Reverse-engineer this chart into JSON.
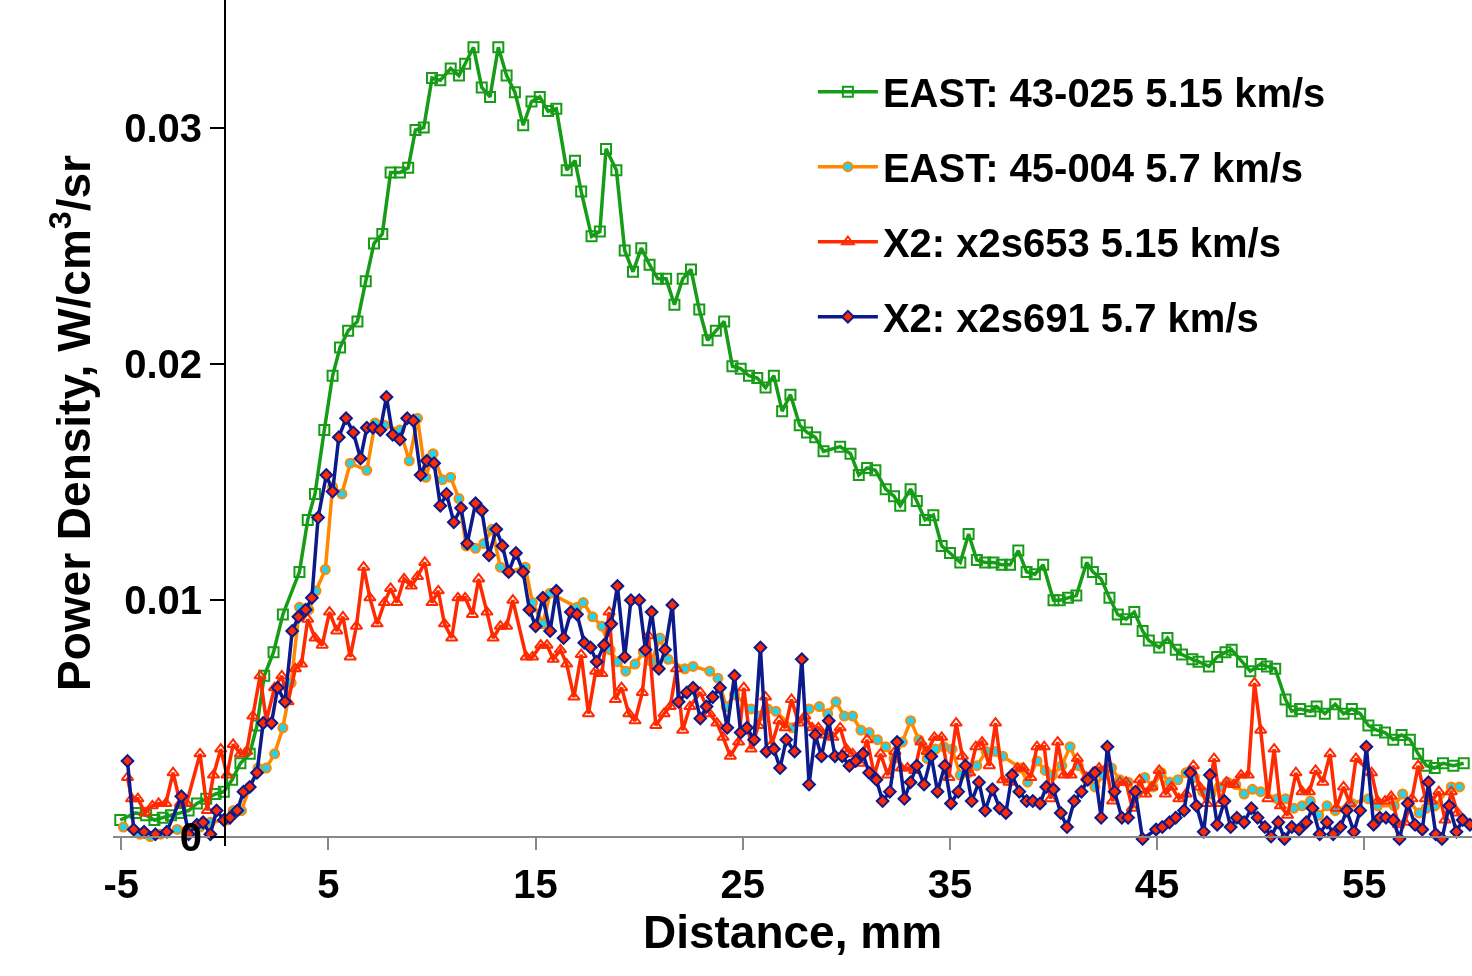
{
  "chart_data": {
    "type": "line",
    "xlabel": "Distance, mm",
    "ylabel": "Power Density, W/cm$^{3}$/sr",
    "xlim": [
      -5.4,
      60.2
    ],
    "ylim": [
      -0.0004,
      0.0354
    ],
    "xticks": [
      -5,
      5,
      15,
      25,
      35,
      45,
      55
    ],
    "yticks": [
      0,
      0.01,
      0.02,
      0.03
    ],
    "grid": false,
    "legend": "top right",
    "line_style": "solid",
    "series": [
      {
        "name": "EAST: 43-025 5.15 km/s",
        "color": "#169c16",
        "marker": "square",
        "x": [
          -5.05,
          -4.3,
          -3.8,
          -3.4,
          -3.0,
          -2.6,
          -2.15,
          -1.75,
          -1.35,
          -0.9,
          -0.45,
          -0.05,
          0.35,
          0.75,
          1.2,
          1.55,
          1.9,
          2.35,
          2.8,
          3.6,
          4.0,
          4.35,
          4.8,
          5.2,
          5.56,
          5.95,
          6.4,
          6.8,
          7.2,
          7.6,
          8.0,
          8.45,
          8.85,
          9.2,
          9.6,
          10.0,
          10.4,
          10.9,
          11.3,
          11.6,
          12.0,
          12.4,
          12.8,
          13.2,
          13.6,
          14.0,
          14.4,
          14.8,
          15.2,
          15.6,
          16.0,
          16.5,
          16.9,
          17.2,
          17.7,
          18.1,
          18.4,
          18.9,
          19.3,
          19.7,
          20.1,
          20.5,
          20.9,
          21.3,
          21.7,
          22.1,
          22.5,
          22.9,
          23.3,
          23.7,
          24.1,
          24.5,
          24.9,
          25.3,
          25.7,
          26.1,
          26.5,
          26.9,
          27.3,
          27.75,
          28.1,
          28.5,
          28.9,
          29.7,
          30.2,
          30.6,
          31.0,
          31.4,
          31.9,
          32.3,
          32.6,
          33.1,
          33.4,
          33.8,
          34.2,
          34.6,
          35.0,
          35.5,
          35.9,
          36.3,
          36.7,
          37.1,
          37.5,
          37.9,
          38.3,
          38.7,
          39.1,
          39.5,
          40.0,
          40.3,
          40.7,
          41.1,
          41.6,
          41.9,
          42.3,
          42.7,
          43.1,
          43.5,
          43.9,
          44.3,
          44.6,
          45.1,
          45.5,
          45.9,
          46.2,
          46.7,
          47.0,
          47.5,
          47.9,
          48.3,
          48.6,
          49.1,
          49.5,
          50.0,
          50.3,
          50.7,
          51.2,
          51.5,
          51.9,
          52.4,
          52.7,
          53.1,
          53.6,
          54.0,
          54.4,
          54.8,
          55.2,
          55.6,
          56.0,
          56.4,
          56.8,
          57.2,
          57.6,
          58.0,
          58.4,
          58.8,
          59.3,
          59.8
        ],
        "values": [
          0.0007,
          0.001,
          0.0009,
          0.0007,
          0.0008,
          0.0009,
          0.001,
          0.0011,
          0.0014,
          0.0016,
          0.0018,
          0.0019,
          0.0024,
          0.0031,
          0.0035,
          0.0047,
          0.0068,
          0.0078,
          0.0094,
          0.0112,
          0.0134,
          0.0145,
          0.0172,
          0.0195,
          0.0207,
          0.0214,
          0.0218,
          0.0235,
          0.0251,
          0.0255,
          0.0281,
          0.0281,
          0.0283,
          0.0299,
          0.03,
          0.0321,
          0.032,
          0.0325,
          0.0322,
          0.0327,
          0.0334,
          0.0317,
          0.0313,
          0.0334,
          0.0322,
          0.0315,
          0.0301,
          0.0311,
          0.0313,
          0.0307,
          0.0308,
          0.0282,
          0.0286,
          0.0273,
          0.0254,
          0.0256,
          0.0291,
          0.0282,
          0.0248,
          0.0239,
          0.0249,
          0.0242,
          0.0236,
          0.0236,
          0.0225,
          0.0236,
          0.024,
          0.0223,
          0.021,
          0.0214,
          0.0218,
          0.0199,
          0.0198,
          0.0195,
          0.0194,
          0.019,
          0.0195,
          0.018,
          0.0187,
          0.0174,
          0.0171,
          0.0169,
          0.0163,
          0.0165,
          0.0162,
          0.0153,
          0.0156,
          0.0155,
          0.0147,
          0.0144,
          0.014,
          0.0147,
          0.0142,
          0.0134,
          0.0136,
          0.0123,
          0.012,
          0.0116,
          0.0128,
          0.0117,
          0.0116,
          0.0116,
          0.0115,
          0.0115,
          0.0121,
          0.0112,
          0.0111,
          0.0115,
          0.01,
          0.01,
          0.0101,
          0.0102,
          0.0116,
          0.0112,
          0.0109,
          0.0101,
          0.0094,
          0.0092,
          0.0095,
          0.0087,
          0.0083,
          0.008,
          0.0084,
          0.0079,
          0.0077,
          0.0075,
          0.0074,
          0.0072,
          0.0076,
          0.0078,
          0.0079,
          0.0074,
          0.007,
          0.0073,
          0.0072,
          0.0071,
          0.0058,
          0.0053,
          0.0054,
          0.0053,
          0.0055,
          0.0052,
          0.0056,
          0.0052,
          0.0054,
          0.0052,
          0.0047,
          0.0045,
          0.0044,
          0.0041,
          0.0043,
          0.0041,
          0.0035,
          0.003,
          0.0029,
          0.0031,
          0.003,
          0.0031
        ]
      },
      {
        "name": "EAST: 45-004 5.7 km/s",
        "color": "#ff8800",
        "marker": "circle",
        "x": [
          -4.9,
          -4.1,
          -3.6,
          -3.1,
          -2.3,
          -1.2,
          -0.7,
          0.1,
          0.4,
          0.8,
          1.2,
          1.6,
          2.0,
          2.4,
          2.8,
          3.2,
          3.6,
          4.05,
          4.4,
          4.85,
          5.2,
          5.65,
          6.05,
          6.85,
          7.25,
          7.7,
          8.45,
          8.9,
          9.3,
          9.7,
          10.05,
          10.5,
          10.9,
          11.3,
          11.65,
          12.1,
          12.5,
          12.9,
          13.3,
          13.7,
          14.5,
          14.85,
          15.35,
          15.7,
          17.0,
          17.3,
          17.75,
          18.2,
          18.6,
          18.95,
          19.35,
          19.8,
          20.2,
          20.6,
          21.0,
          21.4,
          22.2,
          22.6,
          23.4,
          23.8,
          24.2,
          24.6,
          25.4,
          25.8,
          26.2,
          26.6,
          27.4,
          28.2,
          28.7,
          29.1,
          29.5,
          29.9,
          30.3,
          30.7,
          31.1,
          31.5,
          31.9,
          32.3,
          32.7,
          33.1,
          33.5,
          33.9,
          34.3,
          34.7,
          35.1,
          35.5,
          35.9,
          36.3,
          36.75,
          37.2,
          37.55,
          38.4,
          38.75,
          39.2,
          39.6,
          39.95,
          40.4,
          40.8,
          41.2,
          41.6,
          42.0,
          42.4,
          42.8,
          43.2,
          43.6,
          44.0,
          44.4,
          44.8,
          45.2,
          45.6,
          46.0,
          46.4,
          46.8,
          47.2,
          47.6,
          48.0,
          48.4,
          48.8,
          49.2,
          49.6,
          50.0,
          50.8,
          51.2,
          51.6,
          52.0,
          52.4,
          52.8,
          53.2,
          53.6,
          54.4,
          55.2,
          55.65,
          56.45,
          56.85,
          57.65,
          58.0,
          58.4,
          59.2,
          59.6
        ],
        "values": [
          0.0004,
          0.0001,
          0,
          0.0001,
          0.0003,
          0.0004,
          0.0006,
          0.0007,
          0.0011,
          0.0011,
          0.0021,
          0.0029,
          0.0029,
          0.0035,
          0.0046,
          0.0065,
          0.0097,
          0.0096,
          0.0104,
          0.0113,
          0.0148,
          0.0145,
          0.0158,
          0.0155,
          0.0175,
          0.0174,
          0.0172,
          0.0159,
          0.0177,
          0.0152,
          0.0162,
          0.0151,
          0.0152,
          0.0143,
          0.0123,
          0.0122,
          0.0124,
          0.013,
          0.0114,
          0.0112,
          0.0114,
          0.0099,
          0.009,
          0.0103,
          0.0097,
          0.0099,
          0.0093,
          0.0089,
          0.0079,
          0.0074,
          0.007,
          0.0073,
          0.0078,
          0.0074,
          0.0084,
          0.0075,
          0.0071,
          0.0072,
          0.007,
          0.0067,
          0.0055,
          0.006,
          0.0054,
          0.0051,
          0.0054,
          0.0053,
          0.0046,
          0.0054,
          0.0055,
          0.0052,
          0.0057,
          0.0051,
          0.0051,
          0.0045,
          0.0044,
          0.0041,
          0.0038,
          0.0033,
          0.004,
          0.0049,
          0.0041,
          0.0033,
          0.0037,
          0.0038,
          0.0037,
          0.0026,
          0.0027,
          0.003,
          0.0036,
          0.0036,
          0.0034,
          0.0029,
          0.0023,
          0.0032,
          0.0028,
          0.0026,
          0.003,
          0.0038,
          0.003,
          0.0024,
          0.0021,
          0.0026,
          0.0029,
          0.0024,
          0.0023,
          0.0018,
          0.0025,
          0.0021,
          0.0027,
          0.0023,
          0.0024,
          0.0027,
          0.0025,
          0.0019,
          0.0018,
          0.0021,
          0.0023,
          0.0022,
          0.0018,
          0.002,
          0.0019,
          0.0016,
          0.0016,
          0.0012,
          0.0013,
          0.0015,
          0.0009,
          0.0013,
          0.0011,
          0.0014,
          0.0016,
          0.0013,
          0.0013,
          0.0018,
          0.001,
          0.0012,
          0.0013,
          0.0021,
          0.0021
        ]
      },
      {
        "name": "X2: x2s653 5.15 km/s",
        "color": "#ff2a00",
        "marker": "triangle",
        "x": [
          -4.7,
          -4.5,
          -4.2,
          -3.85,
          -3.5,
          -3.2,
          -2.85,
          -2.5,
          -2.15,
          -1.85,
          -1.2,
          -0.85,
          -0.55,
          -0.2,
          0.1,
          0.4,
          0.75,
          1.05,
          1.35,
          1.7,
          2.0,
          2.4,
          2.75,
          3.05,
          3.4,
          3.7,
          4.0,
          4.35,
          4.7,
          5.05,
          5.4,
          5.7,
          6.05,
          6.35,
          6.7,
          7.0,
          7.35,
          7.7,
          8.0,
          8.3,
          8.65,
          9.0,
          9.3,
          9.65,
          10.0,
          10.3,
          10.6,
          10.95,
          11.25,
          11.6,
          11.95,
          12.25,
          12.65,
          12.95,
          13.3,
          13.6,
          13.9,
          14.55,
          14.85,
          15.25,
          15.55,
          15.85,
          16.2,
          16.5,
          16.85,
          17.2,
          17.55,
          17.9,
          18.2,
          18.55,
          18.85,
          19.15,
          19.5,
          19.8,
          20.15,
          20.45,
          20.8,
          21.2,
          21.5,
          21.8,
          22.1,
          22.45,
          22.95,
          23.4,
          23.75,
          24.05,
          24.4,
          24.8,
          25.05,
          25.4,
          25.75,
          26.1,
          26.4,
          26.75,
          27.05,
          27.35,
          27.7,
          28.0,
          28.35,
          28.65,
          29.0,
          29.35,
          29.7,
          30.0,
          30.3,
          30.65,
          31.0,
          31.35,
          31.65,
          32.0,
          32.35,
          32.65,
          32.95,
          33.3,
          33.6,
          33.9,
          34.25,
          34.6,
          34.95,
          35.3,
          35.6,
          35.95,
          36.25,
          36.55,
          36.9,
          37.2,
          37.55,
          37.85,
          38.25,
          38.55,
          38.9,
          39.2,
          39.55,
          39.85,
          40.2,
          40.5,
          40.85,
          41.15,
          41.6,
          41.9,
          42.2,
          42.55,
          42.85,
          43.2,
          43.5,
          43.8,
          44.15,
          44.45,
          44.75,
          45.1,
          45.4,
          45.7,
          46.05,
          46.4,
          46.75,
          47.05,
          47.4,
          47.75,
          48.05,
          48.35,
          48.7,
          49.05,
          49.4,
          49.7,
          50.0,
          50.35,
          50.65,
          50.95,
          51.3,
          51.7,
          52.0,
          52.35,
          52.65,
          53.0,
          53.35,
          53.65,
          54.0,
          54.3,
          54.6,
          55.35,
          55.65,
          56.0,
          56.3,
          56.65,
          56.95,
          57.3,
          57.6,
          57.95,
          58.25,
          58.6,
          58.9,
          59.2,
          59.5,
          59.8
        ],
        "values": [
          0.0025,
          0.0016,
          0.0016,
          0.001,
          0.0013,
          0.0014,
          0.0014,
          0.0027,
          0.0014,
          0.0014,
          0.0035,
          0.0011,
          0.0026,
          0.0037,
          0.0026,
          0.0039,
          0.0035,
          0.0036,
          0.0051,
          0.0068,
          0.0049,
          0.0063,
          0.0068,
          0.0057,
          0.0071,
          0.0073,
          0.0092,
          0.0084,
          0.0081,
          0.0095,
          0.0087,
          0.0093,
          0.0076,
          0.0089,
          0.0114,
          0.0101,
          0.009,
          0.0099,
          0.0105,
          0.0099,
          0.0109,
          0.0106,
          0.011,
          0.0116,
          0.0099,
          0.0104,
          0.009,
          0.0084,
          0.0101,
          0.0101,
          0.0094,
          0.0109,
          0.0095,
          0.0084,
          0.0089,
          0.0089,
          0.01,
          0.0076,
          0.0076,
          0.0081,
          0.0081,
          0.0075,
          0.0079,
          0.0073,
          0.0059,
          0.0077,
          0.0052,
          0.007,
          0.0069,
          0.0095,
          0.0058,
          0.0063,
          0.0052,
          0.0049,
          0.0061,
          0.0085,
          0.0047,
          0.0052,
          0.0055,
          0.0071,
          0.0045,
          0.0055,
          0.0061,
          0.0052,
          0.0048,
          0.0042,
          0.0034,
          0.004,
          0.0063,
          0.0037,
          0.0047,
          0.0059,
          0.0039,
          0.0049,
          0.0046,
          0.0058,
          0.0048,
          0.0051,
          0.0046,
          0.0046,
          0.0043,
          0.0042,
          0.0046,
          0.0037,
          0.0035,
          0.0031,
          0.0041,
          0.0026,
          0.0035,
          0.0026,
          0.0036,
          0.0029,
          0.0029,
          0.0028,
          0.004,
          0.0036,
          0.0042,
          0.0042,
          0.0025,
          0.0048,
          0.0034,
          0.0027,
          0.0038,
          0.004,
          0.003,
          0.0048,
          0.0024,
          0.0023,
          0.0029,
          0.0029,
          0.0025,
          0.0038,
          0.0038,
          0.0016,
          0.004,
          0.0026,
          0.0026,
          0.0033,
          0.0025,
          0.0027,
          0.0029,
          0.0029,
          0.0015,
          0.0023,
          0.0023,
          0.0012,
          0.0024,
          0.0018,
          0.0021,
          0.0028,
          0.0018,
          0.0021,
          0.0016,
          0.0018,
          0.003,
          0.0021,
          0.0014,
          0.0033,
          0.0014,
          0.0023,
          0.0022,
          0.0026,
          0.0026,
          0.0065,
          0.0045,
          0.0016,
          0.0037,
          0.0013,
          0.0009,
          0.0027,
          0.0019,
          0.0019,
          0.0028,
          0.0023,
          0.0035,
          0.0012,
          0.0021,
          0.0014,
          0.0033,
          0.0027,
          0.0015,
          0.0015,
          0.0017,
          0.0005,
          0.0006,
          0.0016,
          0.003,
          0.0016,
          0.0015,
          0.0019,
          0.0007,
          0.0019,
          0.001,
          0.0007
        ]
      },
      {
        "name": "X2: x2s691 5.7 km/s",
        "color": "#0d1a8c",
        "marker": "diamond",
        "x": [
          -4.7,
          -4.4,
          -3.9,
          -3.35,
          -2.8,
          -2.1,
          -1.75,
          -1.35,
          -1.05,
          -0.7,
          -0.4,
          -0.05,
          0.25,
          0.6,
          0.9,
          1.2,
          1.55,
          1.85,
          2.25,
          2.55,
          2.9,
          3.25,
          3.55,
          3.9,
          4.2,
          4.5,
          4.9,
          5.2,
          5.5,
          5.85,
          6.2,
          6.55,
          6.85,
          7.15,
          7.5,
          7.8,
          8.1,
          8.45,
          8.8,
          9.1,
          9.45,
          9.75,
          10.1,
          10.4,
          10.7,
          11.05,
          11.4,
          11.7,
          12.1,
          12.4,
          12.75,
          13.1,
          13.4,
          13.7,
          14.05,
          14.4,
          14.7,
          15.0,
          15.35,
          15.7,
          16.0,
          16.35,
          16.7,
          17.0,
          17.35,
          17.65,
          17.95,
          18.3,
          18.65,
          18.95,
          19.3,
          19.6,
          20.0,
          20.3,
          20.6,
          20.95,
          21.25,
          21.6,
          21.9,
          22.3,
          22.6,
          22.95,
          23.25,
          23.55,
          23.9,
          24.25,
          24.6,
          24.9,
          25.2,
          25.55,
          25.85,
          26.15,
          26.5,
          26.8,
          27.1,
          27.5,
          27.85,
          28.2,
          28.5,
          28.8,
          29.15,
          29.45,
          29.8,
          30.15,
          30.45,
          30.8,
          31.1,
          31.45,
          31.75,
          32.1,
          32.45,
          32.8,
          33.1,
          33.4,
          33.75,
          34.1,
          34.4,
          34.75,
          35.05,
          35.4,
          35.75,
          36.05,
          36.4,
          36.7,
          37.05,
          37.4,
          37.7,
          38.0,
          38.35,
          38.7,
          39.0,
          39.35,
          39.65,
          40.0,
          40.35,
          40.65,
          41.0,
          41.35,
          41.65,
          42.0,
          42.3,
          42.6,
          42.95,
          43.3,
          43.6,
          43.95,
          44.3,
          44.95,
          45.25,
          45.6,
          45.9,
          46.3,
          46.6,
          46.9,
          47.25,
          47.55,
          47.9,
          48.25,
          48.55,
          48.85,
          49.2,
          49.55,
          49.85,
          50.2,
          50.5,
          50.85,
          51.15,
          51.5,
          51.85,
          52.2,
          52.5,
          52.85,
          53.2,
          53.5,
          53.85,
          54.15,
          54.5,
          54.8,
          55.1,
          55.45,
          55.75,
          56.05,
          56.4,
          56.7,
          57.1,
          57.45,
          57.8,
          58.1,
          58.45,
          58.75,
          59.1,
          59.45,
          59.75,
          60.1
        ],
        "values": [
          0.0032,
          0.0003,
          0.0002,
          0.0001,
          0.0002,
          0.0017,
          0.0001,
          0.0005,
          0.0006,
          0.0001,
          0.0011,
          0.0007,
          0.0008,
          0.0011,
          0.0019,
          0.0021,
          0.0027,
          0.0048,
          0.0048,
          0.0063,
          0.0057,
          0.0087,
          0.0093,
          0.0096,
          0.0101,
          0.0135,
          0.0153,
          0.0146,
          0.0169,
          0.0177,
          0.0171,
          0.016,
          0.0173,
          0.0173,
          0.0172,
          0.0186,
          0.017,
          0.0168,
          0.0177,
          0.0176,
          0.0153,
          0.0159,
          0.0158,
          0.014,
          0.0145,
          0.0133,
          0.0139,
          0.0124,
          0.0141,
          0.0138,
          0.0119,
          0.013,
          0.0123,
          0.0112,
          0.012,
          0.0112,
          0.0096,
          0.0089,
          0.0101,
          0.0087,
          0.0104,
          0.0084,
          0.0095,
          0.0094,
          0.0082,
          0.008,
          0.0074,
          0.0081,
          0.009,
          0.0106,
          0.0076,
          0.01,
          0.01,
          0.0079,
          0.0095,
          0.0071,
          0.0079,
          0.0098,
          0.0057,
          0.0061,
          0.0063,
          0.005,
          0.0055,
          0.0059,
          0.0063,
          0.0046,
          0.0068,
          0.0044,
          0.0046,
          0.0041,
          0.008,
          0.0036,
          0.0037,
          0.0029,
          0.0041,
          0.0036,
          0.0075,
          0.0022,
          0.0043,
          0.0034,
          0.0049,
          0.0034,
          0.0034,
          0.003,
          0.0032,
          0.0035,
          0.0027,
          0.0024,
          0.0015,
          0.0019,
          0.004,
          0.0016,
          0.0023,
          0.003,
          0.0022,
          0.0034,
          0.0019,
          0.003,
          0.0014,
          0.0019,
          0.003,
          0.0015,
          0.0023,
          0.0011,
          0.002,
          0.0012,
          0.001,
          0.0026,
          0.0019,
          0.0015,
          0.0015,
          0.0014,
          0.0021,
          0.002,
          0.001,
          0.0004,
          0.0015,
          0.0019,
          0.0024,
          0.0027,
          0.0008,
          0.0038,
          0.0019,
          0.0008,
          0.0008,
          0.0019,
          -0.0001,
          0.0003,
          0.0004,
          0.0006,
          0.0008,
          0.0011,
          0.0027,
          0.0013,
          0.0002,
          0.0026,
          0.0005,
          0.0015,
          0.0004,
          0.0008,
          0.0006,
          0.0012,
          0.0008,
          0.0004,
          0,
          0.0006,
          -0.0001,
          0.0004,
          0.0003,
          0.0006,
          0.0012,
          0.0001,
          0.0006,
          0.0001,
          0.0004,
          0.0011,
          0.0002,
          0.0011,
          0.0038,
          0.0005,
          0.0008,
          0.0008,
          0.0007,
          -0.0001,
          0.0014,
          0.0005,
          0.0003,
          0.0023,
          0.0001,
          -0.0001,
          0.0013,
          0.0002,
          0.0007,
          0.0005
        ]
      }
    ]
  }
}
